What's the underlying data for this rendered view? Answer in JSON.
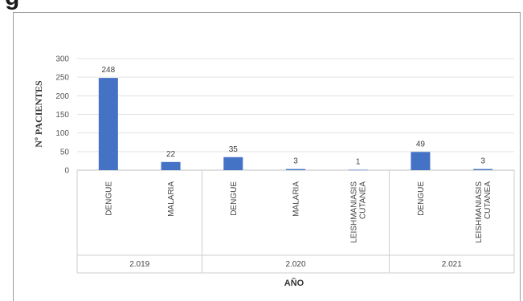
{
  "header": {
    "cut_text": "g"
  },
  "chart_data": {
    "type": "bar",
    "xlabel": "AÑO",
    "ylabel": "Nº PACIENTES",
    "ylim": [
      0,
      300
    ],
    "yticks": [
      0,
      50,
      100,
      150,
      200,
      250,
      300
    ],
    "grid": true,
    "bar_color": "#4472c4",
    "groups": [
      {
        "label": "2.019",
        "categories": [
          {
            "label": [
              "DENGUE"
            ],
            "value": 248
          },
          {
            "label": [
              "MALARIA"
            ],
            "value": 22
          }
        ]
      },
      {
        "label": "2.020",
        "categories": [
          {
            "label": [
              "DENGUE"
            ],
            "value": 35
          },
          {
            "label": [
              "MALARIA"
            ],
            "value": 3
          },
          {
            "label": [
              "LEISHMANIASIS",
              "CUTANEA"
            ],
            "value": 1
          }
        ]
      },
      {
        "label": "2.021",
        "categories": [
          {
            "label": [
              "DENGUE"
            ],
            "value": 49
          },
          {
            "label": [
              "LEISHMANIASIS",
              "CUTANEA"
            ],
            "value": 3
          }
        ]
      }
    ]
  }
}
